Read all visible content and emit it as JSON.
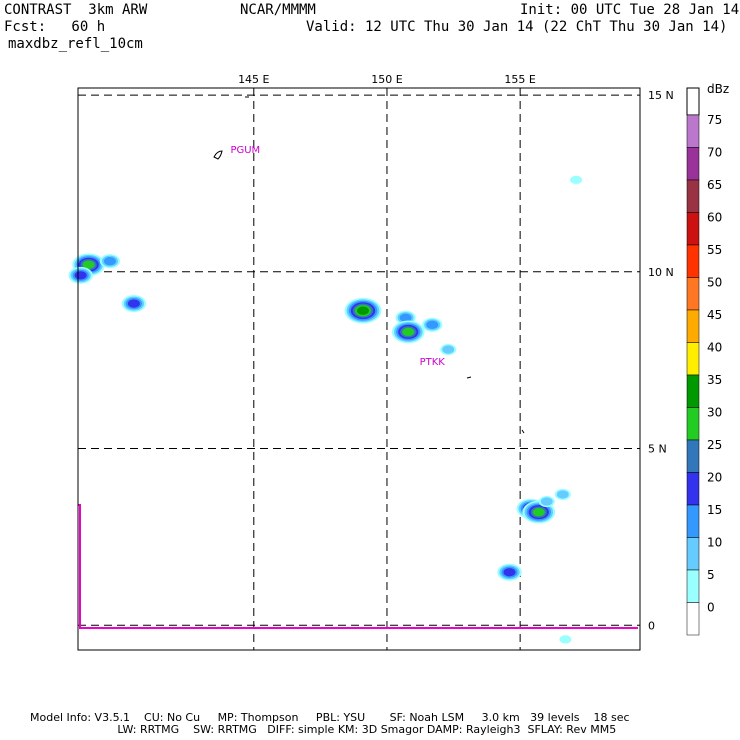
{
  "header": {
    "model": "CONTRAST  3km ARW",
    "org": "NCAR/MMMM",
    "init": "Init: 00 UTC Tue 28 Jan 14",
    "fcst": "Fcst:   60 h",
    "valid": "Valid: 12 UTC Thu 30 Jan 14 (22 ChT Thu 30 Jan 14)",
    "field": "maxdbz_refl_10cm"
  },
  "footer": {
    "line1": "Model Info: V3.5.1    CU: No Cu     MP: Thompson     PBL: YSU       SF: Noah LSM     3.0 km   39 levels    18 sec",
    "line2": "                         LW: RRTMG    SW: RRTMG   DIFF: simple KM: 3D Smagor DAMP: Rayleigh3  SFLAY: Rev MM5"
  },
  "chart_data": {
    "type": "heatmap",
    "title": "maxdbz_refl_10cm",
    "lon_range": [
      138.4,
      159.5
    ],
    "lat_range": [
      -0.7,
      15.2
    ],
    "lon_ticks": [
      145,
      150,
      155
    ],
    "lon_tick_labels": [
      "145 E",
      "150 E",
      "155 E"
    ],
    "lat_ticks": [
      0,
      5,
      10,
      15
    ],
    "lat_tick_labels": [
      "0",
      "5 N",
      "10 N",
      "15 N"
    ],
    "grid": true,
    "stations": [
      {
        "name": "PGUM",
        "lon": 144.8,
        "lat": 13.5
      },
      {
        "name": "PTKK",
        "lon": 151.9,
        "lat": 7.5
      }
    ],
    "colorbar": {
      "unit": "dBz",
      "levels": [
        0,
        5,
        10,
        15,
        20,
        25,
        30,
        35,
        40,
        45,
        50,
        55,
        60,
        65,
        70,
        75
      ],
      "colors": [
        "#ffffff",
        "#99ffff",
        "#66ccff",
        "#3399ff",
        "#3333ee",
        "#3377bb",
        "#22cc22",
        "#009900",
        "#ffee00",
        "#ffaa00",
        "#ff7722",
        "#ff3300",
        "#cc1111",
        "#993344",
        "#993399",
        "#bb77cc"
      ]
    },
    "echoes": [
      {
        "lon": 138.8,
        "lat": 10.2,
        "dbz": 30
      },
      {
        "lon": 138.5,
        "lat": 9.9,
        "dbz": 20
      },
      {
        "lon": 139.6,
        "lat": 10.3,
        "dbz": 15
      },
      {
        "lon": 140.5,
        "lat": 9.1,
        "dbz": 20
      },
      {
        "lon": 149.1,
        "lat": 8.9,
        "dbz": 35
      },
      {
        "lon": 150.7,
        "lat": 8.7,
        "dbz": 15
      },
      {
        "lon": 150.8,
        "lat": 8.3,
        "dbz": 30
      },
      {
        "lon": 151.7,
        "lat": 8.5,
        "dbz": 15
      },
      {
        "lon": 152.3,
        "lat": 7.8,
        "dbz": 10
      },
      {
        "lon": 157.1,
        "lat": 12.6,
        "dbz": 5
      },
      {
        "lon": 155.4,
        "lat": 3.3,
        "dbz": 25
      },
      {
        "lon": 155.7,
        "lat": 3.2,
        "dbz": 30
      },
      {
        "lon": 156.0,
        "lat": 3.5,
        "dbz": 10
      },
      {
        "lon": 156.6,
        "lat": 3.7,
        "dbz": 10
      },
      {
        "lon": 154.6,
        "lat": 1.5,
        "dbz": 20
      },
      {
        "lon": 156.7,
        "lat": -0.4,
        "dbz": 5
      }
    ]
  }
}
